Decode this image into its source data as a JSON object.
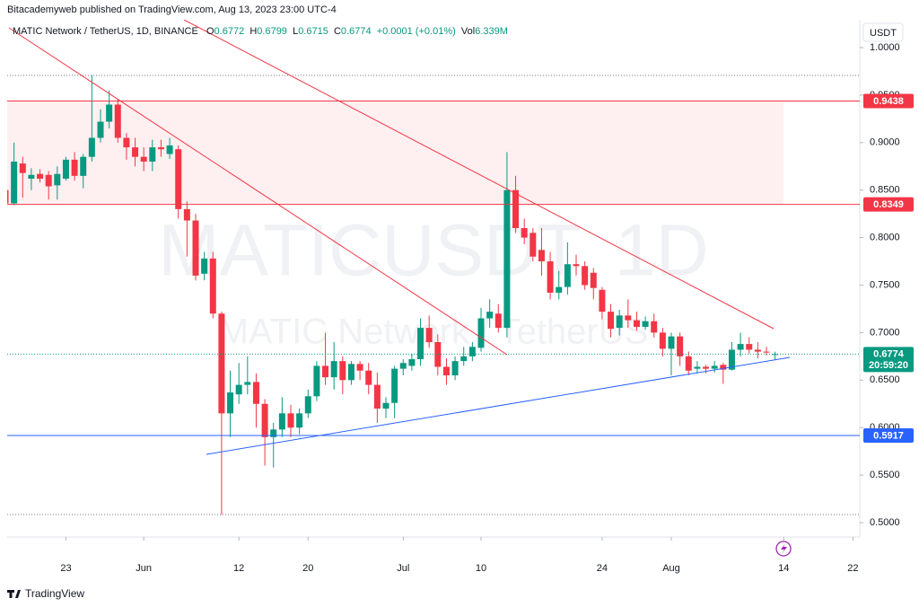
{
  "attribution": "Bitacademyweb published on TradingView.com, Aug 13, 2023 23:00 UTC-4",
  "logo": "TradingView",
  "currency_button": "USDT",
  "chart_data": {
    "type": "candlestick",
    "symbol": "MATIC Network / TetherUS, 1D, BINANCE",
    "ohlc_keys": [
      "O",
      "H",
      "L",
      "C"
    ],
    "change": "+0.0001 (+0.01%)",
    "volume_key": "Vol",
    "volume": "6.339M",
    "watermark": "MATICUSDT, 1D",
    "watermark_description": "MATIC Network / TetherUS",
    "countdown": "20:59:20",
    "up_color": "#089981",
    "down_color": "#f23645",
    "x": [
      "2023-05-16",
      "2023-05-17",
      "2023-05-18",
      "2023-05-19",
      "2023-05-20",
      "2023-05-21",
      "2023-05-22",
      "2023-05-23",
      "2023-05-24",
      "2023-05-25",
      "2023-05-26",
      "2023-05-27",
      "2023-05-28",
      "2023-05-29",
      "2023-05-30",
      "2023-05-31",
      "2023-06-01",
      "2023-06-02",
      "2023-06-03",
      "2023-06-04",
      "2023-06-05",
      "2023-06-06",
      "2023-06-07",
      "2023-06-08",
      "2023-06-09",
      "2023-06-10",
      "2023-06-11",
      "2023-06-12",
      "2023-06-13",
      "2023-06-14",
      "2023-06-15",
      "2023-06-16",
      "2023-06-17",
      "2023-06-18",
      "2023-06-19",
      "2023-06-20",
      "2023-06-21",
      "2023-06-22",
      "2023-06-23",
      "2023-06-24",
      "2023-06-25",
      "2023-06-26",
      "2023-06-27",
      "2023-06-28",
      "2023-06-29",
      "2023-06-30",
      "2023-07-01",
      "2023-07-02",
      "2023-07-03",
      "2023-07-04",
      "2023-07-05",
      "2023-07-06",
      "2023-07-07",
      "2023-07-08",
      "2023-07-09",
      "2023-07-10",
      "2023-07-11",
      "2023-07-12",
      "2023-07-13",
      "2023-07-14",
      "2023-07-15",
      "2023-07-16",
      "2023-07-17",
      "2023-07-18",
      "2023-07-19",
      "2023-07-20",
      "2023-07-21",
      "2023-07-22",
      "2023-07-23",
      "2023-07-24",
      "2023-07-25",
      "2023-07-26",
      "2023-07-27",
      "2023-07-28",
      "2023-07-29",
      "2023-07-30",
      "2023-07-31",
      "2023-08-01",
      "2023-08-02",
      "2023-08-03",
      "2023-08-04",
      "2023-08-05",
      "2023-08-06",
      "2023-08-07",
      "2023-08-08",
      "2023-08-09",
      "2023-08-10",
      "2023-08-11",
      "2023-08-12",
      "2023-08-13"
    ],
    "open": [
      0.85,
      0.836,
      0.878,
      0.862,
      0.867,
      0.866,
      0.855,
      0.862,
      0.882,
      0.865,
      0.885,
      0.905,
      0.922,
      0.94,
      0.905,
      0.895,
      0.885,
      0.88,
      0.895,
      0.888,
      0.893,
      0.83,
      0.818,
      0.762,
      0.778,
      0.72,
      0.615,
      0.635,
      0.645,
      0.648,
      0.625,
      0.59,
      0.598,
      0.615,
      0.6,
      0.615,
      0.633,
      0.665,
      0.653,
      0.67,
      0.65,
      0.667,
      0.66,
      0.645,
      0.62,
      0.626,
      0.662,
      0.665,
      0.672,
      0.705,
      0.69,
      0.664,
      0.655,
      0.67,
      0.675,
      0.684,
      0.715,
      0.72,
      0.705,
      0.85,
      0.81,
      0.805,
      0.787,
      0.775,
      0.742,
      0.748,
      0.772,
      0.77,
      0.763,
      0.745,
      0.722,
      0.705,
      0.718,
      0.713,
      0.706,
      0.712,
      0.7,
      0.683,
      0.696,
      0.675,
      0.662,
      0.664,
      0.662,
      0.666,
      0.661,
      0.682,
      0.688,
      0.682,
      0.68,
      0.6772
    ],
    "high": [
      0.856,
      0.9,
      0.885,
      0.873,
      0.872,
      0.87,
      0.875,
      0.885,
      0.89,
      0.888,
      0.9707,
      0.935,
      0.955,
      0.946,
      0.91,
      0.905,
      0.895,
      0.903,
      0.903,
      0.905,
      0.897,
      0.838,
      0.825,
      0.785,
      0.785,
      0.722,
      0.66,
      0.668,
      0.675,
      0.657,
      0.63,
      0.605,
      0.632,
      0.624,
      0.62,
      0.64,
      0.67,
      0.7,
      0.69,
      0.675,
      0.67,
      0.67,
      0.668,
      0.658,
      0.632,
      0.665,
      0.672,
      0.678,
      0.715,
      0.718,
      0.698,
      0.673,
      0.675,
      0.685,
      0.69,
      0.726,
      0.735,
      0.73,
      0.89,
      0.865,
      0.82,
      0.81,
      0.81,
      0.785,
      0.765,
      0.795,
      0.782,
      0.775,
      0.768,
      0.748,
      0.73,
      0.724,
      0.735,
      0.722,
      0.717,
      0.72,
      0.705,
      0.7,
      0.7,
      0.68,
      0.67,
      0.666,
      0.67,
      0.668,
      0.69,
      0.7,
      0.695,
      0.69,
      0.685,
      0.6799
    ],
    "low": [
      0.835,
      0.834,
      0.842,
      0.85,
      0.858,
      0.84,
      0.84,
      0.86,
      0.86,
      0.852,
      0.88,
      0.9,
      0.915,
      0.9,
      0.882,
      0.875,
      0.87,
      0.87,
      0.885,
      0.883,
      0.82,
      0.78,
      0.755,
      0.755,
      0.715,
      0.5085,
      0.59,
      0.625,
      0.635,
      0.6,
      0.56,
      0.558,
      0.59,
      0.59,
      0.593,
      0.61,
      0.628,
      0.645,
      0.64,
      0.635,
      0.645,
      0.65,
      0.635,
      0.605,
      0.61,
      0.61,
      0.655,
      0.66,
      0.665,
      0.684,
      0.655,
      0.645,
      0.65,
      0.665,
      0.67,
      0.68,
      0.705,
      0.7,
      0.695,
      0.805,
      0.793,
      0.775,
      0.76,
      0.735,
      0.735,
      0.74,
      0.76,
      0.745,
      0.735,
      0.714,
      0.695,
      0.697,
      0.705,
      0.702,
      0.703,
      0.695,
      0.675,
      0.655,
      0.665,
      0.655,
      0.657,
      0.657,
      0.658,
      0.646,
      0.66,
      0.675,
      0.678,
      0.673,
      0.676,
      0.6715
    ],
    "close": [
      0.836,
      0.88,
      0.868,
      0.866,
      0.862,
      0.854,
      0.867,
      0.882,
      0.865,
      0.885,
      0.905,
      0.922,
      0.94,
      0.905,
      0.895,
      0.885,
      0.88,
      0.895,
      0.893,
      0.897,
      0.83,
      0.818,
      0.76,
      0.778,
      0.72,
      0.615,
      0.637,
      0.645,
      0.648,
      0.625,
      0.59,
      0.598,
      0.615,
      0.6,
      0.615,
      0.633,
      0.665,
      0.653,
      0.67,
      0.65,
      0.667,
      0.66,
      0.645,
      0.62,
      0.626,
      0.662,
      0.668,
      0.672,
      0.705,
      0.69,
      0.664,
      0.655,
      0.67,
      0.675,
      0.685,
      0.715,
      0.722,
      0.705,
      0.85,
      0.81,
      0.8,
      0.78,
      0.775,
      0.742,
      0.748,
      0.772,
      0.77,
      0.75,
      0.747,
      0.722,
      0.704,
      0.718,
      0.713,
      0.706,
      0.712,
      0.7,
      0.683,
      0.696,
      0.675,
      0.66,
      0.664,
      0.662,
      0.665,
      0.661,
      0.682,
      0.688,
      0.682,
      0.68,
      0.679,
      0.6774
    ],
    "xlim": [
      "2023-05-16",
      "2023-08-23"
    ],
    "xticks": [
      {
        "value": "2023-05-23",
        "label": "23"
      },
      {
        "value": "2023-06-01",
        "label": "Jun"
      },
      {
        "value": "2023-06-12",
        "label": "12"
      },
      {
        "value": "2023-06-20",
        "label": "20"
      },
      {
        "value": "2023-07-01",
        "label": "Jul"
      },
      {
        "value": "2023-07-10",
        "label": "10"
      },
      {
        "value": "2023-07-24",
        "label": "24"
      },
      {
        "value": "2023-08-01",
        "label": "Aug"
      },
      {
        "value": "2023-08-14",
        "label": "14"
      },
      {
        "value": "2023-08-22",
        "label": "22"
      }
    ],
    "ylim": [
      0.4849,
      1.0293
    ],
    "yticks": [
      {
        "value": 0.5,
        "label": "0.5000"
      },
      {
        "value": 0.55,
        "label": "0.5500"
      },
      {
        "value": 0.6,
        "label": "0.6000"
      },
      {
        "value": 0.65,
        "label": "0.6500"
      },
      {
        "value": 0.7,
        "label": "0.7000"
      },
      {
        "value": 0.75,
        "label": "0.7500"
      },
      {
        "value": 0.8,
        "label": "0.8000"
      },
      {
        "value": 0.85,
        "label": "0.8500"
      },
      {
        "value": 0.9,
        "label": "0.9000"
      },
      {
        "value": 0.95,
        "label": "0.9500"
      },
      {
        "value": 1,
        "label": "1.0000"
      }
    ],
    "price_lines": [
      {
        "value": 0.9438,
        "color": "#f23645"
      },
      {
        "value": 0.8349,
        "color": "#f23645"
      },
      {
        "value": 0.5917,
        "color": "#2962ff"
      }
    ]
  }
}
